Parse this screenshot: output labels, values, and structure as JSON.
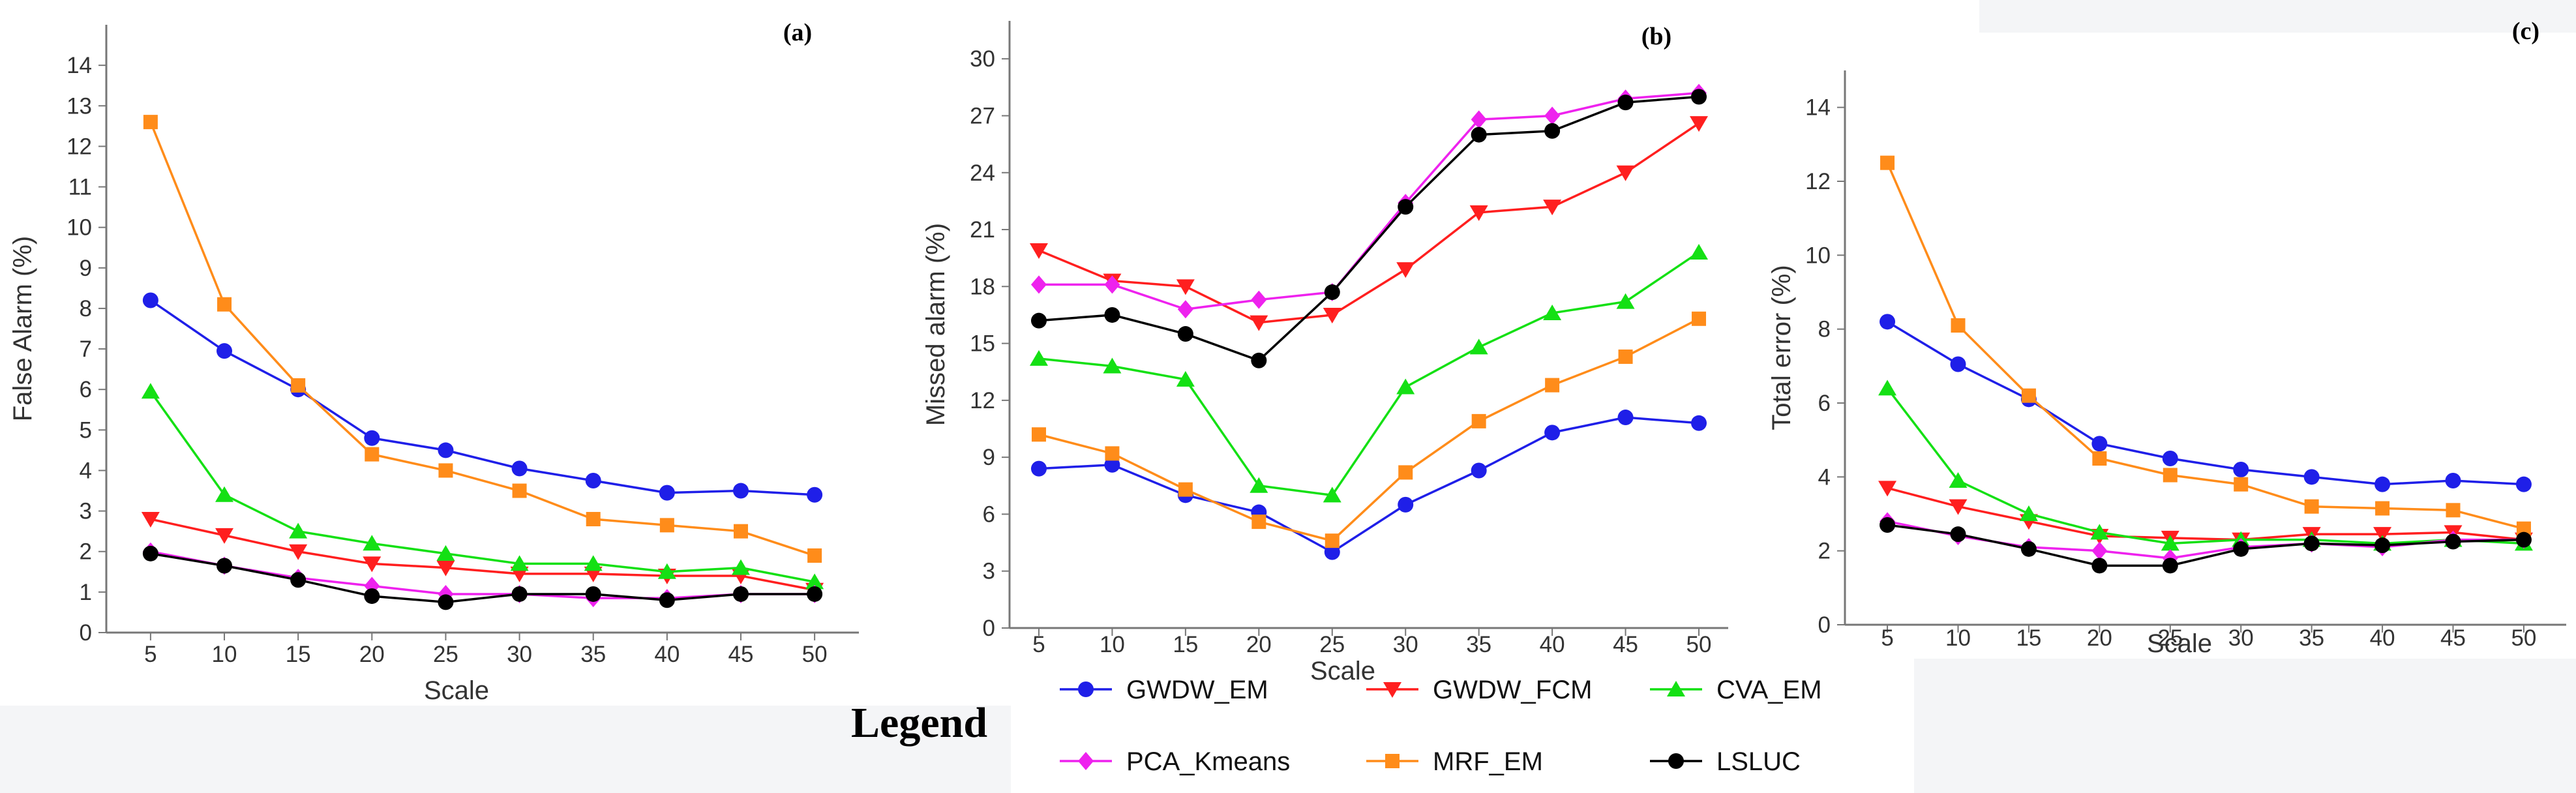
{
  "legend": {
    "title": "Legend",
    "entries": [
      {
        "name": "GWDW_EM",
        "color": "#1f1fe8",
        "marker": "circle"
      },
      {
        "name": "GWDW_FCM",
        "color": "#ff1f1f",
        "marker": "triangle-down"
      },
      {
        "name": "CVA_EM",
        "color": "#14e014",
        "marker": "triangle-up"
      },
      {
        "name": "PCA_Kmeans",
        "color": "#ee22ee",
        "marker": "diamond"
      },
      {
        "name": "MRF_EM",
        "color": "#ff8c1a",
        "marker": "square"
      },
      {
        "name": "LSLUC",
        "color": "#000000",
        "marker": "circle"
      }
    ]
  },
  "chart_data": [
    {
      "type": "line",
      "panel_label": "(a)",
      "xlabel": "Scale",
      "ylabel": "False Alarm (%)",
      "x": [
        5,
        10,
        15,
        20,
        25,
        30,
        35,
        40,
        45,
        50
      ],
      "xlim": [
        2,
        53
      ],
      "ylim": [
        0,
        15
      ],
      "yticks": [
        0,
        1,
        2,
        3,
        4,
        5,
        6,
        7,
        8,
        9,
        10,
        11,
        12,
        13,
        14
      ],
      "series": [
        {
          "name": "GWDW_EM",
          "values": [
            8.2,
            6.95,
            6.0,
            4.8,
            4.5,
            4.05,
            3.75,
            3.45,
            3.5,
            3.4
          ]
        },
        {
          "name": "GWDW_FCM",
          "values": [
            2.8,
            2.4,
            2.0,
            1.7,
            1.6,
            1.45,
            1.45,
            1.4,
            1.4,
            1.05
          ]
        },
        {
          "name": "CVA_EM",
          "values": [
            5.95,
            3.4,
            2.5,
            2.2,
            1.95,
            1.7,
            1.7,
            1.5,
            1.6,
            1.25
          ]
        },
        {
          "name": "PCA_Kmeans",
          "values": [
            2.0,
            1.65,
            1.35,
            1.15,
            0.95,
            0.95,
            0.85,
            0.85,
            0.95,
            0.95
          ]
        },
        {
          "name": "MRF_EM",
          "values": [
            12.6,
            8.1,
            6.1,
            4.4,
            4.0,
            3.5,
            2.8,
            2.65,
            2.5,
            1.9
          ]
        },
        {
          "name": "LSLUC",
          "values": [
            1.95,
            1.65,
            1.3,
            0.9,
            0.75,
            0.95,
            0.95,
            0.8,
            0.95,
            0.95
          ]
        }
      ]
    },
    {
      "type": "line",
      "panel_label": "(b)",
      "xlabel": "Scale",
      "ylabel": "Missed alarm (%)",
      "x": [
        5,
        10,
        15,
        20,
        25,
        30,
        35,
        40,
        45,
        50
      ],
      "xlim": [
        3,
        52
      ],
      "ylim": [
        0,
        32
      ],
      "yticks": [
        0,
        3,
        6,
        9,
        12,
        15,
        18,
        21,
        24,
        27,
        30
      ],
      "series": [
        {
          "name": "GWDW_EM",
          "values": [
            8.4,
            8.6,
            7.0,
            6.1,
            4.0,
            6.5,
            8.3,
            10.3,
            11.1,
            10.8
          ]
        },
        {
          "name": "GWDW_FCM",
          "values": [
            19.9,
            18.3,
            18.0,
            16.1,
            16.5,
            18.9,
            21.9,
            22.2,
            24.0,
            26.6
          ]
        },
        {
          "name": "CVA_EM",
          "values": [
            14.2,
            13.8,
            13.1,
            7.5,
            7.0,
            12.7,
            14.8,
            16.6,
            17.2,
            19.8
          ]
        },
        {
          "name": "PCA_Kmeans",
          "values": [
            18.1,
            18.1,
            16.8,
            17.3,
            17.7,
            22.4,
            26.8,
            27.0,
            27.9,
            28.2
          ]
        },
        {
          "name": "MRF_EM",
          "values": [
            10.2,
            9.2,
            7.3,
            5.6,
            4.6,
            8.2,
            10.9,
            12.8,
            14.3,
            16.3
          ]
        },
        {
          "name": "LSLUC",
          "values": [
            16.2,
            16.5,
            15.5,
            14.1,
            17.7,
            22.2,
            26.0,
            26.2,
            27.7,
            28.0
          ]
        }
      ]
    },
    {
      "type": "line",
      "panel_label": "(c)",
      "xlabel": "Scale",
      "ylabel": "Total error (%)",
      "x": [
        5,
        10,
        15,
        20,
        25,
        30,
        35,
        40,
        45,
        50
      ],
      "xlim": [
        2,
        53
      ],
      "ylim": [
        0,
        15
      ],
      "yticks": [
        0,
        2,
        4,
        6,
        8,
        10,
        12,
        14
      ],
      "series": [
        {
          "name": "GWDW_EM",
          "values": [
            8.2,
            7.05,
            6.1,
            4.9,
            4.5,
            4.2,
            4.0,
            3.8,
            3.9,
            3.8
          ]
        },
        {
          "name": "GWDW_FCM",
          "values": [
            3.7,
            3.2,
            2.8,
            2.4,
            2.35,
            2.3,
            2.45,
            2.45,
            2.5,
            2.3
          ]
        },
        {
          "name": "CVA_EM",
          "values": [
            6.4,
            3.9,
            3.0,
            2.5,
            2.2,
            2.3,
            2.3,
            2.2,
            2.3,
            2.2
          ]
        },
        {
          "name": "PCA_Kmeans",
          "values": [
            2.8,
            2.4,
            2.1,
            2.0,
            1.8,
            2.1,
            2.2,
            2.1,
            2.3,
            2.3
          ]
        },
        {
          "name": "MRF_EM",
          "values": [
            12.5,
            8.1,
            6.2,
            4.5,
            4.05,
            3.8,
            3.2,
            3.15,
            3.1,
            2.6
          ]
        },
        {
          "name": "LSLUC",
          "values": [
            2.7,
            2.45,
            2.05,
            1.6,
            1.6,
            2.05,
            2.2,
            2.15,
            2.25,
            2.3
          ]
        }
      ]
    }
  ]
}
